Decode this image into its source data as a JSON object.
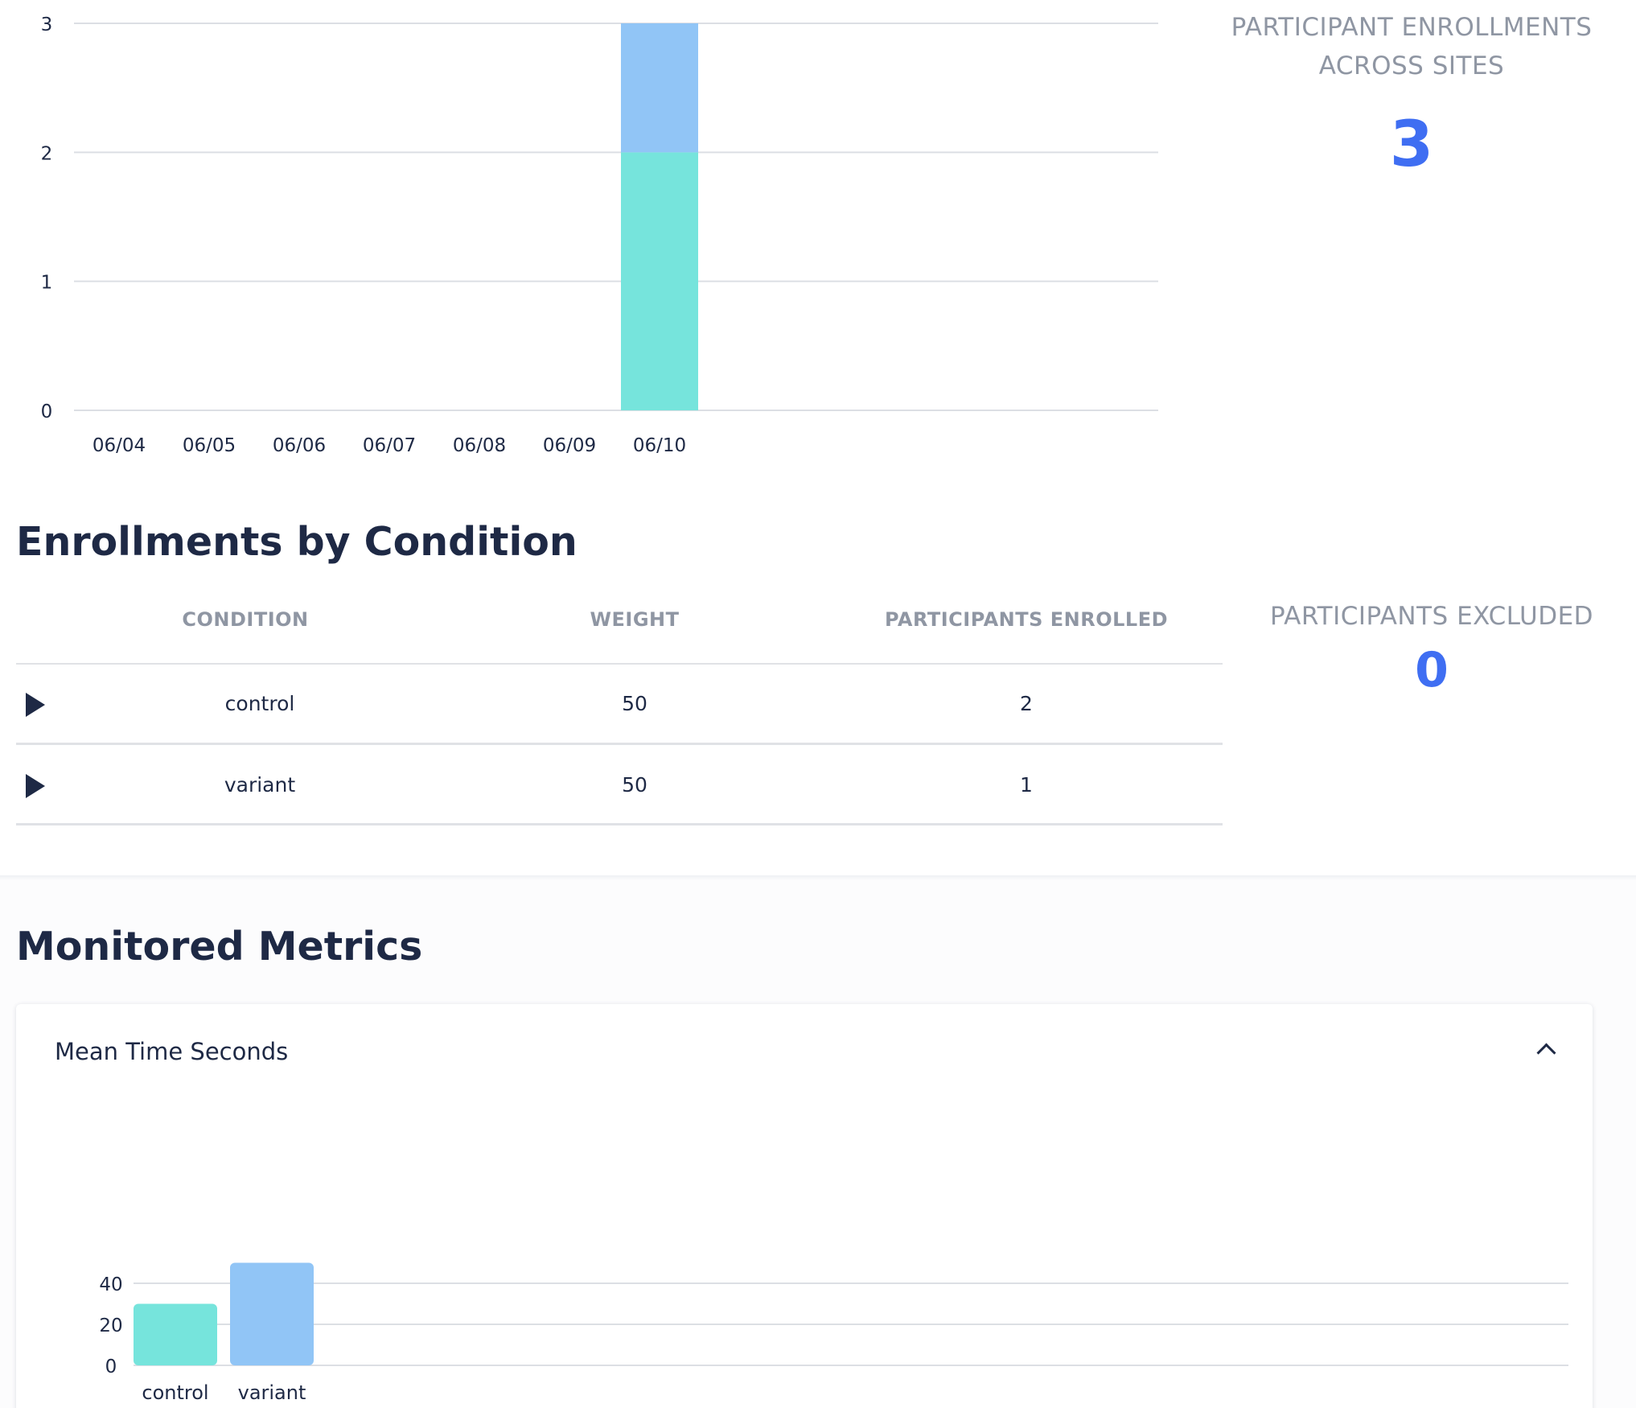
{
  "enrollment_chart": {
    "chart_data": {
      "type": "bar",
      "stacked": true,
      "categories": [
        "06/04",
        "06/05",
        "06/06",
        "06/07",
        "06/08",
        "06/09",
        "06/10"
      ],
      "series": [
        {
          "color": "#76e4dc",
          "values": [
            0,
            0,
            0,
            0,
            0,
            0,
            2
          ]
        },
        {
          "color": "#91c5f6",
          "values": [
            0,
            0,
            0,
            0,
            0,
            0,
            1
          ]
        }
      ],
      "yticks": [
        0,
        1,
        2,
        3
      ],
      "ylim": [
        0,
        3
      ],
      "grid": true,
      "title": "",
      "xlabel": "",
      "ylabel": ""
    }
  },
  "stats": {
    "enrollments_across_sites": {
      "title_lines": [
        "PARTICIPANT ENROLLMENTS",
        "ACROSS SITES"
      ],
      "value": "3"
    },
    "participants_excluded": {
      "title": "PARTICIPANTS EXCLUDED",
      "value": "0"
    }
  },
  "enrollments_by_condition": {
    "title": "Enrollments by Condition",
    "headers": {
      "condition": "CONDITION",
      "weight": "WEIGHT",
      "enrolled": "PARTICIPANTS ENROLLED"
    },
    "rows": [
      {
        "condition": "control",
        "weight": "50",
        "enrolled": "2"
      },
      {
        "condition": "variant",
        "weight": "50",
        "enrolled": "1"
      }
    ]
  },
  "monitored_metrics": {
    "title": "Monitored Metrics",
    "metric": {
      "title": "Mean Time Seconds",
      "chart_data": {
        "type": "bar",
        "categories": [
          "control",
          "variant"
        ],
        "values": [
          30,
          50
        ],
        "colors": [
          "#76e4dc",
          "#91c5f6"
        ],
        "yticks": [
          0,
          20,
          40
        ],
        "ylim": [
          0,
          50
        ],
        "grid": true,
        "title": "",
        "xlabel": "",
        "ylabel": ""
      }
    }
  },
  "colors": {
    "accent": "#3f6ef2",
    "text_dark": "#1e2945",
    "text_muted": "#8f96a3",
    "grid": "#dcdfe4"
  }
}
